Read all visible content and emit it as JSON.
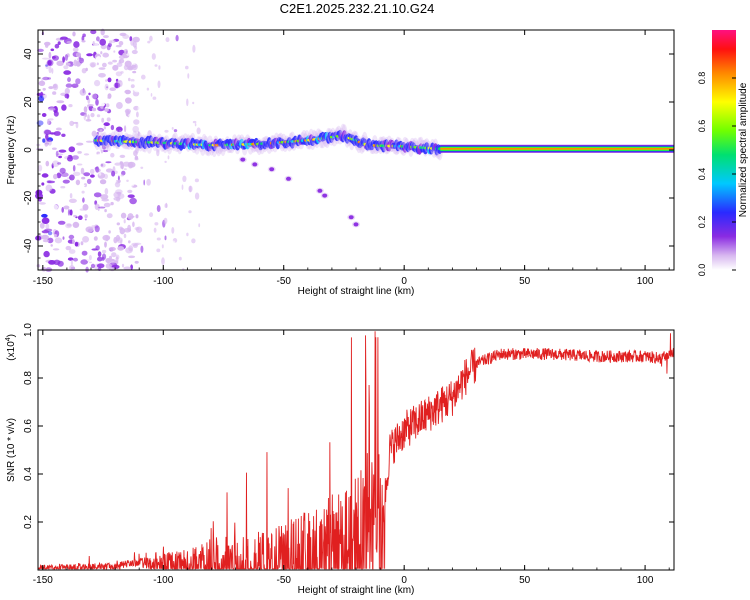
{
  "figure_title": "C2E1.2025.232.21.10.G24",
  "chart_data": [
    {
      "type": "heatmap",
      "title": "C2E1.2025.232.21.10.G24",
      "xlabel": "Height of straight line (km)",
      "ylabel": "Frequency (Hz)",
      "xlim": [
        -152,
        112
      ],
      "ylim": [
        -50,
        50
      ],
      "xticks": [
        -150,
        -100,
        -50,
        0,
        50,
        100
      ],
      "yticks": [
        -40,
        -20,
        0,
        20,
        40
      ],
      "colorbar": {
        "label": "Normalized spectral amplitude",
        "range": [
          0,
          1
        ],
        "ticks": [
          "0.0",
          "0.2",
          "0.4",
          "0.6",
          "0.8"
        ],
        "tick_values": [
          0.0,
          0.2,
          0.4,
          0.6,
          0.8
        ]
      },
      "features": {
        "noise_region_x": [
          -152,
          -110
        ],
        "main_band": {
          "x": [
            -128,
            -115,
            -100,
            -80,
            -60,
            -40,
            -25,
            -15,
            0,
            15
          ],
          "freq": [
            4,
            3.5,
            3,
            2,
            2.5,
            4,
            6,
            2,
            1.5,
            0.5
          ]
        },
        "steady_line": {
          "x": [
            15,
            112
          ],
          "freq": 0.5
        },
        "descending_track": {
          "x": [
            -67,
            -62,
            -55,
            -48,
            -35,
            -33,
            -22,
            -20
          ],
          "freq": [
            -4,
            -6,
            -8,
            -12,
            -17,
            -19,
            -28,
            -31
          ]
        }
      }
    },
    {
      "type": "line",
      "xlabel": "Height of straight line (km)",
      "ylabel": "SNR (10 * v/v)",
      "y_multiplier_label": "(x10",
      "y_multiplier_exp": "4",
      "y_multiplier_close": ")",
      "xlim": [
        -152,
        112
      ],
      "ylim": [
        0,
        1.0
      ],
      "xticks": [
        -150,
        -100,
        -50,
        0,
        50,
        100
      ],
      "yticks": [
        "0.2",
        "0.4",
        "0.6",
        "0.8",
        "1.0"
      ],
      "ytick_values": [
        0.2,
        0.4,
        0.6,
        0.8,
        1.0
      ],
      "series": [
        {
          "name": "SNR",
          "color": "#e02020",
          "envelope": {
            "x": [
              -152,
              -120,
              -110,
              -100,
              -85,
              -80,
              -70,
              -60,
              -50,
              -40,
              -30,
              -25,
              -20,
              -15,
              -10,
              -8,
              -6,
              0,
              10,
              20,
              25,
              30,
              40,
              60,
              80,
              100,
              108,
              112
            ],
            "y": [
              0.02,
              0.03,
              0.05,
              0.07,
              0.1,
              0.15,
              0.14,
              0.16,
              0.2,
              0.25,
              0.32,
              0.35,
              0.42,
              0.45,
              0.5,
              0.3,
              0.5,
              0.58,
              0.65,
              0.72,
              0.8,
              0.86,
              0.9,
              0.9,
              0.89,
              0.89,
              0.88,
              0.9
            ]
          }
        }
      ]
    }
  ],
  "colors": {
    "line": "#e02020",
    "axis": "#000000"
  }
}
